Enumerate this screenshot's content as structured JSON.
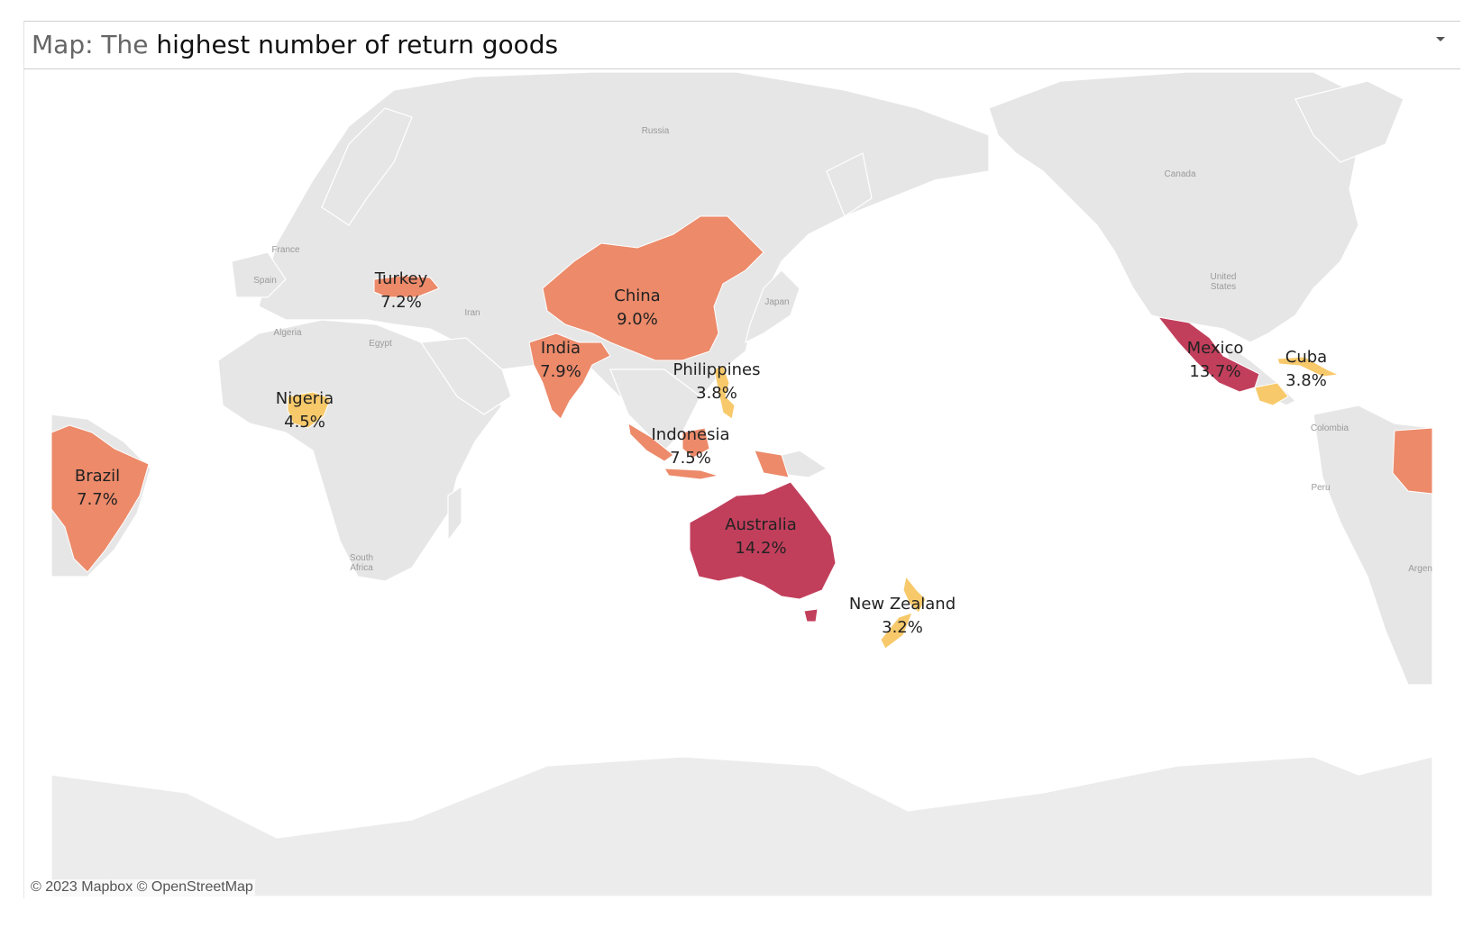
{
  "title": {
    "prefix": "Map: The",
    "main": "highest number of return goods"
  },
  "colors": {
    "land": "#e4e4e4",
    "ocean": "#ffffff",
    "border": "#ffffff",
    "high": "#c23f5c",
    "medium": "#ec8a6a",
    "low": "#f7c96a"
  },
  "map_labels": [
    "Russia",
    "Canada",
    "United States",
    "France",
    "Spain",
    "Algeria",
    "Egypt",
    "Iran",
    "Japan",
    "Colombia",
    "Peru",
    "Argent",
    "South Africa"
  ],
  "countries": [
    {
      "name": "Turkey",
      "value": "7.2%"
    },
    {
      "name": "China",
      "value": "9.0%"
    },
    {
      "name": "India",
      "value": "7.9%"
    },
    {
      "name": "Philippines",
      "value": "3.8%"
    },
    {
      "name": "Nigeria",
      "value": "4.5%"
    },
    {
      "name": "Indonesia",
      "value": "7.5%"
    },
    {
      "name": "Brazil",
      "value": "7.7%"
    },
    {
      "name": "Australia",
      "value": "14.2%"
    },
    {
      "name": "New Zealand",
      "value": "3.2%"
    },
    {
      "name": "Mexico",
      "value": "13.7%"
    },
    {
      "name": "Cuba",
      "value": "3.8%"
    }
  ],
  "credit": "© 2023 Mapbox © OpenStreetMap"
}
